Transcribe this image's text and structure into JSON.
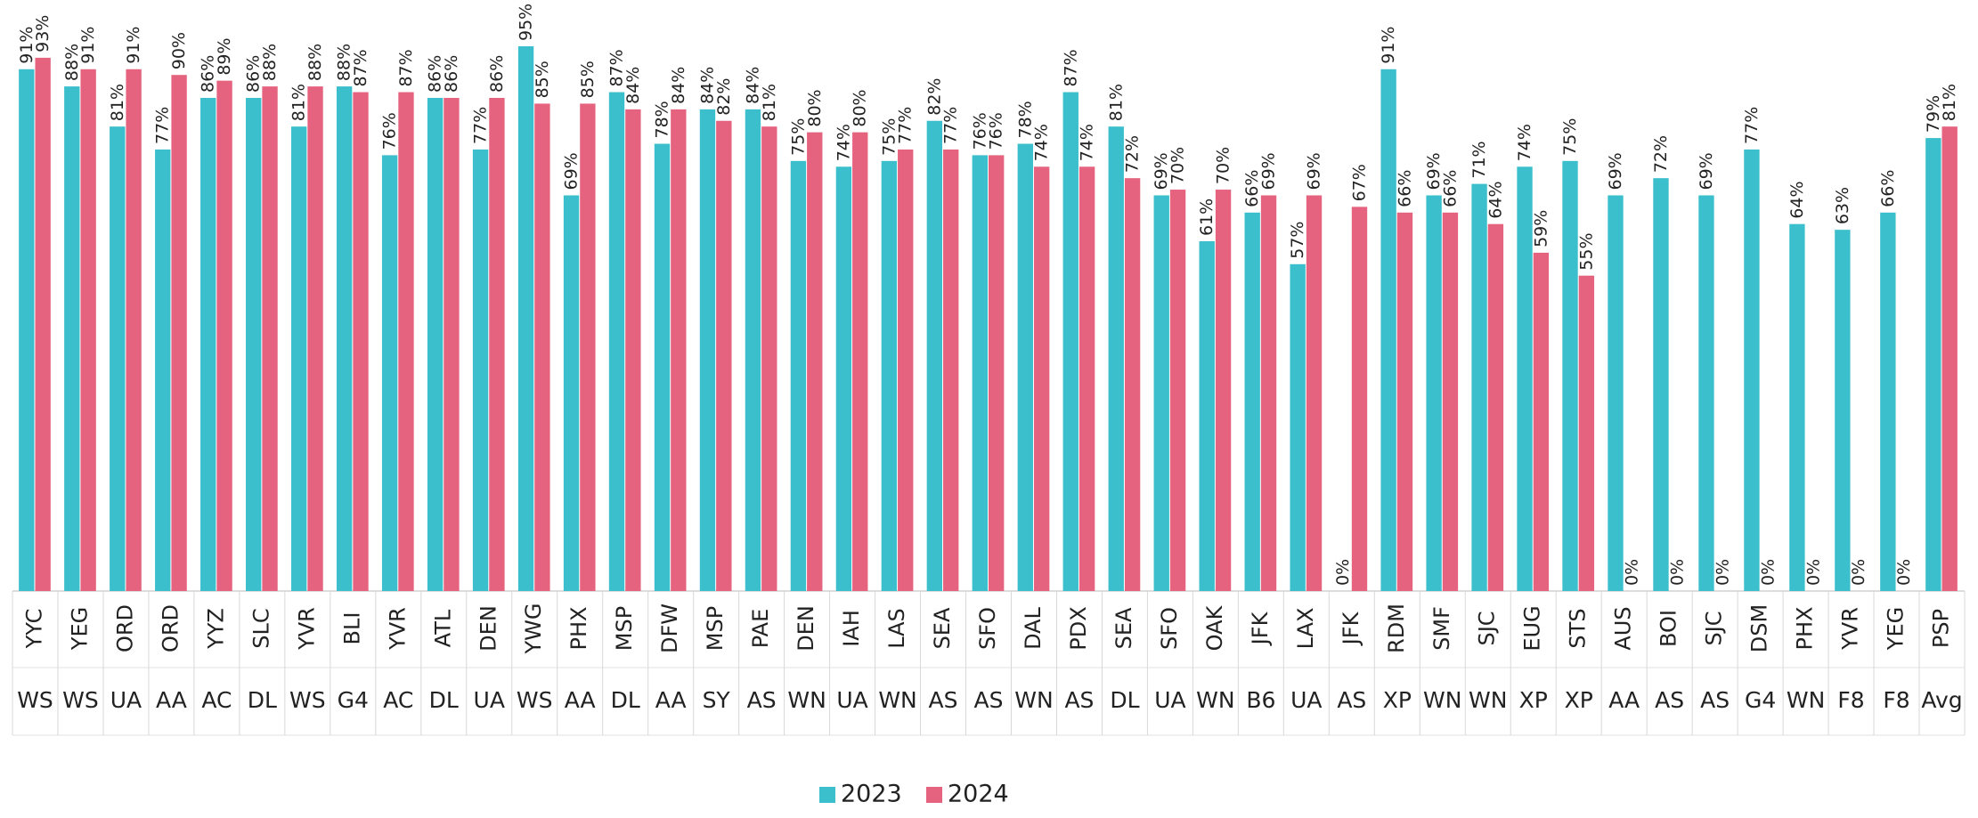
{
  "chart_data": {
    "type": "bar",
    "categories": [
      [
        "YYC",
        "WS"
      ],
      [
        "YEG",
        "WS"
      ],
      [
        "ORD",
        "UA"
      ],
      [
        "ORD",
        "AA"
      ],
      [
        "YYZ",
        "AC"
      ],
      [
        "SLC",
        "DL"
      ],
      [
        "YVR",
        "WS"
      ],
      [
        "BLI",
        "G4"
      ],
      [
        "YVR",
        "AC"
      ],
      [
        "ATL",
        "DL"
      ],
      [
        "DEN",
        "UA"
      ],
      [
        "YWG",
        "WS"
      ],
      [
        "PHX",
        "AA"
      ],
      [
        "MSP",
        "DL"
      ],
      [
        "DFW",
        "AA"
      ],
      [
        "MSP",
        "SY"
      ],
      [
        "PAE",
        "AS"
      ],
      [
        "DEN",
        "WN"
      ],
      [
        "IAH",
        "UA"
      ],
      [
        "LAS",
        "WN"
      ],
      [
        "SEA",
        "AS"
      ],
      [
        "SFO",
        "AS"
      ],
      [
        "DAL",
        "WN"
      ],
      [
        "PDX",
        "AS"
      ],
      [
        "SEA",
        "DL"
      ],
      [
        "SFO",
        "UA"
      ],
      [
        "OAK",
        "WN"
      ],
      [
        "JFK",
        "B6"
      ],
      [
        "LAX",
        "UA"
      ],
      [
        "JFK",
        "AS"
      ],
      [
        "RDM",
        "XP"
      ],
      [
        "SMF",
        "WN"
      ],
      [
        "SJC",
        "WN"
      ],
      [
        "EUG",
        "XP"
      ],
      [
        "STS",
        "XP"
      ],
      [
        "AUS",
        "AA"
      ],
      [
        "BOI",
        "AS"
      ],
      [
        "SJC",
        "AS"
      ],
      [
        "DSM",
        "G4"
      ],
      [
        "PHX",
        "WN"
      ],
      [
        "YVR",
        "F8"
      ],
      [
        "YEG",
        "F8"
      ],
      [
        "PSP",
        "Avg"
      ]
    ],
    "series": [
      {
        "name": "2023",
        "color": "#3bbfcc",
        "values": [
          91,
          88,
          81,
          77,
          86,
          86,
          81,
          88,
          76,
          86,
          77,
          95,
          69,
          87,
          78,
          84,
          84,
          75,
          74,
          75,
          82,
          76,
          78,
          87,
          81,
          69,
          61,
          66,
          57,
          0,
          91,
          69,
          71,
          74,
          75,
          69,
          72,
          69,
          77,
          64,
          63,
          66,
          79
        ],
        "value_labels": [
          "91%",
          "88%",
          "81%",
          "77%",
          "86%",
          "86%",
          "81%",
          "88%",
          "76%",
          "86%",
          "77%",
          "95%",
          "69%",
          "87%",
          "78%",
          "84%",
          "84%",
          "75%",
          "74%",
          "75%",
          "82%",
          "76%",
          "78%",
          "87%",
          "81%",
          "69%",
          "61%",
          "66%",
          "57%",
          "0%",
          "91%",
          "69%",
          "71%",
          "74%",
          "75%",
          "69%",
          "72%",
          "69%",
          "77%",
          "64%",
          "63%",
          "66%",
          "79%"
        ]
      },
      {
        "name": "2024",
        "color": "#e5637f",
        "values": [
          93,
          91,
          91,
          90,
          89,
          88,
          88,
          87,
          87,
          86,
          86,
          85,
          85,
          84,
          84,
          82,
          81,
          80,
          80,
          77,
          77,
          76,
          74,
          74,
          72,
          70,
          70,
          69,
          69,
          67,
          66,
          66,
          64,
          59,
          55,
          0,
          0,
          0,
          0,
          0,
          0,
          0,
          81
        ],
        "value_labels": [
          "93%",
          "91%",
          "91%",
          "90%",
          "89%",
          "88%",
          "88%",
          "87%",
          "87%",
          "86%",
          "86%",
          "85%",
          "85%",
          "84%",
          "84%",
          "82%",
          "81%",
          "80%",
          "80%",
          "77%",
          "77%",
          "76%",
          "74%",
          "74%",
          "72%",
          "70%",
          "70%",
          "69%",
          "69%",
          "67%",
          "66%",
          "66%",
          "64%",
          "59%",
          "55%",
          "0%",
          "0%",
          "0%",
          "0%",
          "0%",
          "0%",
          "0%",
          "81%"
        ]
      }
    ],
    "legend": "bottom"
  }
}
